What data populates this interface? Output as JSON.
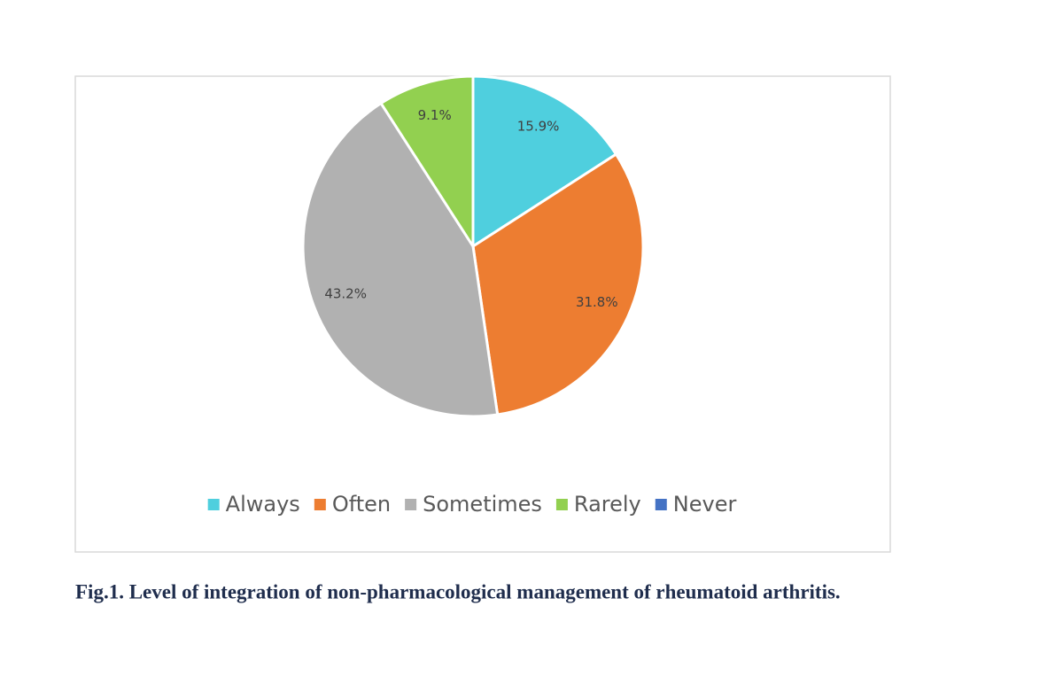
{
  "chart_data": {
    "type": "pie",
    "categories": [
      "Always",
      "Often",
      "Sometimes",
      "Rarely",
      "Never"
    ],
    "values": [
      15.9,
      31.8,
      43.2,
      9.1,
      0
    ],
    "value_labels": [
      "15.9%",
      "31.8%",
      "43.2%",
      "9.1%",
      null
    ],
    "colors": [
      "#4fcfde",
      "#ed7d31",
      "#b1b1b1",
      "#92d050",
      "#4472c4"
    ],
    "legend": "bottom",
    "caption": "Fig.1. Level of integration of non-pharmacological management of rheumatoid arthritis."
  }
}
